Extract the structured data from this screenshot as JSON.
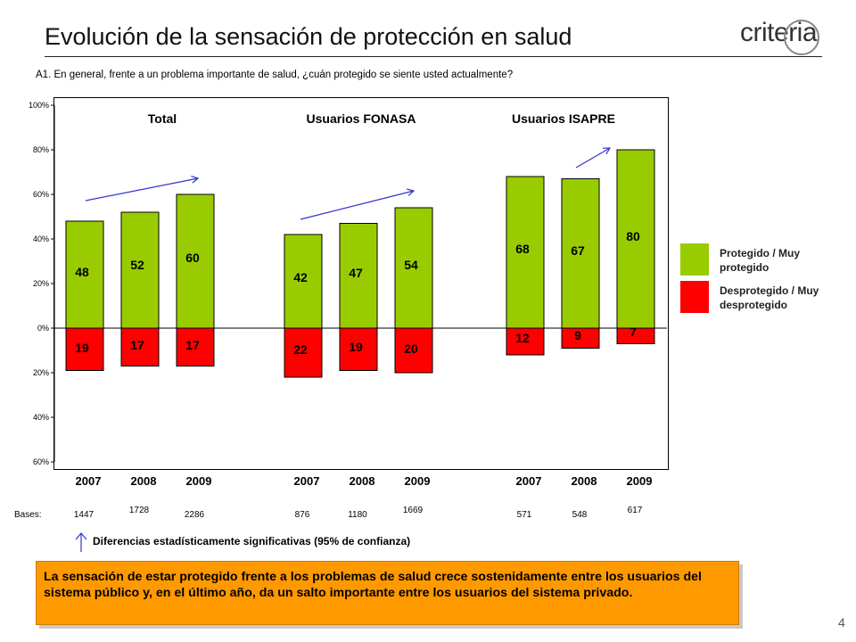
{
  "header": {
    "title": "Evolución de la sensación de protección en salud",
    "logo_text": "criteria"
  },
  "question": "A1. En general, frente a un problema importante de salud, ¿cuán protegido se siente usted actualmente?",
  "chart_data": {
    "type": "bar",
    "subtype": "diverging stacked bar",
    "ylim": [
      -60,
      100
    ],
    "ytick_values": [
      100,
      80,
      60,
      40,
      20,
      0,
      -20,
      -40,
      -60
    ],
    "ytick_labels": [
      "100%",
      "80%",
      "60%",
      "40%",
      "20%",
      "0%",
      "20%",
      "40%",
      "60%"
    ],
    "grid": false,
    "legend_position": "right",
    "groups": [
      {
        "name": "Total",
        "categories": [
          "2007",
          "2008",
          "2009"
        ],
        "protegido": [
          48,
          52,
          60
        ],
        "desprotegido": [
          19,
          17,
          17
        ],
        "bases": [
          "1447",
          "1728",
          "2286"
        ]
      },
      {
        "name": "Usuarios FONASA",
        "categories": [
          "2007",
          "2008",
          "2009"
        ],
        "protegido": [
          42,
          47,
          54
        ],
        "desprotegido": [
          22,
          19,
          20
        ],
        "bases": [
          "876",
          "1180",
          "1669"
        ]
      },
      {
        "name": "Usuarios ISAPRE",
        "categories": [
          "2007",
          "2008",
          "2009"
        ],
        "protegido": [
          68,
          67,
          80
        ],
        "desprotegido": [
          12,
          9,
          7
        ],
        "bases": [
          "571",
          "548",
          "617"
        ]
      }
    ],
    "series": [
      {
        "name": "Protegido / Muy protegido",
        "color": "#99CC00"
      },
      {
        "name": "Desprotegido / Muy desprotegido",
        "color": "#FF0000"
      }
    ],
    "significance_arrows": [
      {
        "group": "Total",
        "from": "2007",
        "to": "2009"
      },
      {
        "group": "Usuarios FONASA",
        "from": "2007",
        "to": "2009"
      },
      {
        "group": "Usuarios ISAPRE",
        "from": "2008",
        "to": "2009"
      }
    ],
    "arrow_color": "#3333CC"
  },
  "bases_label": "Bases:",
  "legend": {
    "protegido": "Protegido / Muy protegido",
    "desprotegido": "Desprotegido / Muy desprotegido"
  },
  "significance_note": "Diferencias estadísticamente significativas (95% de confianza)",
  "conclusion": "La sensación de estar protegido frente a los problemas de salud crece sostenidamente entre los usuarios del sistema público y, en el último año, da un salto importante entre los usuarios del sistema privado.",
  "page_number": "4"
}
